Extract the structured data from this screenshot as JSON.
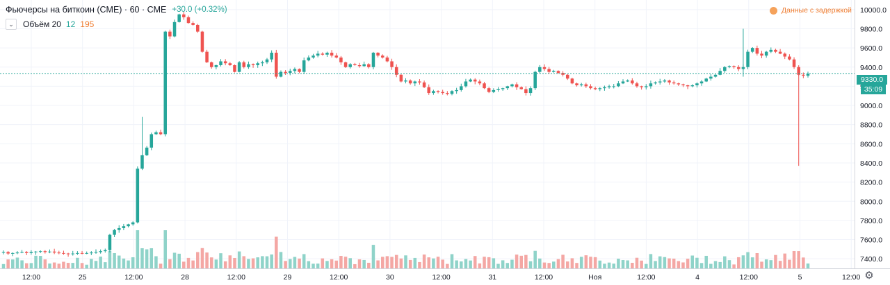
{
  "legend": {
    "title": "Фьючерсы на биткоин (CME) · 60 · CME",
    "change": "+30.0 (+0.32%)",
    "volume_label": "Объём 20",
    "volume_value_a": "12",
    "volume_value_b": "195"
  },
  "delay_notice": "Данные с задержкой",
  "current_price_label": "9330.0",
  "countdown_label": "35:09",
  "icons": {
    "collapse": "chevron-down-icon",
    "settings": "gear-icon"
  },
  "colors": {
    "up": "#26a69a",
    "down": "#ef5350",
    "up_volume": "#8fd3c9",
    "down_volume": "#f4a7a4",
    "price_line": "#26a69a",
    "delay": "#ef7c2f"
  },
  "chart_data": {
    "type": "candlestick",
    "y_axis": {
      "min": 7300,
      "max": 10100,
      "ticks": [
        7400,
        7600,
        7800,
        8000,
        8200,
        8400,
        8600,
        8800,
        9000,
        9200,
        9400,
        9600,
        9800,
        10000
      ]
    },
    "y_tick_labels": [
      "7400.0",
      "7600.0",
      "7800.0",
      "8000.0",
      "8200.0",
      "8400.0",
      "8600.0",
      "8800.0",
      "9000.0",
      "9200.0",
      "9400.0",
      "9600.0",
      "9800.0",
      "10000.0"
    ],
    "x_tick_labels": [
      "12:00",
      "25",
      "12:00",
      "28",
      "12:00",
      "29",
      "12:00",
      "30",
      "12:00",
      "31",
      "12:00",
      "Ноя",
      "12:00",
      "4",
      "12:00",
      "5",
      "12:00"
    ],
    "current_price": 9330.0,
    "grid": true,
    "closes": [
      7470,
      7455,
      7460,
      7465,
      7470,
      7460,
      7470,
      7475,
      7480,
      7470,
      7475,
      7465,
      7460,
      7455,
      7450,
      7455,
      7460,
      7455,
      7460,
      7465,
      7470,
      7480,
      7490,
      7650,
      7700,
      7720,
      7740,
      7760,
      7780,
      8340,
      8480,
      8560,
      8700,
      8720,
      8700,
      9770,
      9720,
      9870,
      9950,
      9920,
      9860,
      9840,
      9770,
      9560,
      9450,
      9400,
      9420,
      9460,
      9440,
      9420,
      9350,
      9450,
      9400,
      9430,
      9420,
      9440,
      9450,
      9480,
      9550,
      9300,
      9350,
      9340,
      9360,
      9380,
      9350,
      9470,
      9500,
      9520,
      9540,
      9530,
      9550,
      9520,
      9500,
      9450,
      9400,
      9430,
      9420,
      9410,
      9430,
      9400,
      9550,
      9520,
      9500,
      9460,
      9400,
      9320,
      9250,
      9260,
      9230,
      9250,
      9240,
      9190,
      9130,
      9150,
      9140,
      9130,
      9120,
      9150,
      9160,
      9200,
      9250,
      9270,
      9250,
      9230,
      9180,
      9140,
      9160,
      9170,
      9180,
      9200,
      9220,
      9190,
      9170,
      9130,
      9180,
      9350,
      9400,
      9380,
      9350,
      9360,
      9340,
      9320,
      9280,
      9230,
      9210,
      9220,
      9200,
      9180,
      9170,
      9180,
      9190,
      9200,
      9200,
      9230,
      9250,
      9260,
      9230,
      9200,
      9190,
      9200,
      9230,
      9240,
      9250,
      9260,
      9240,
      9230,
      9220,
      9210,
      9200,
      9210,
      9230,
      9250,
      9280,
      9300,
      9320,
      9360,
      9400,
      9410,
      9400,
      9380,
      9400,
      9560,
      9600,
      9540,
      9520,
      9560,
      9580,
      9560,
      9540,
      9510,
      9480,
      9400,
      9320,
      9310,
      9330
    ]
  }
}
